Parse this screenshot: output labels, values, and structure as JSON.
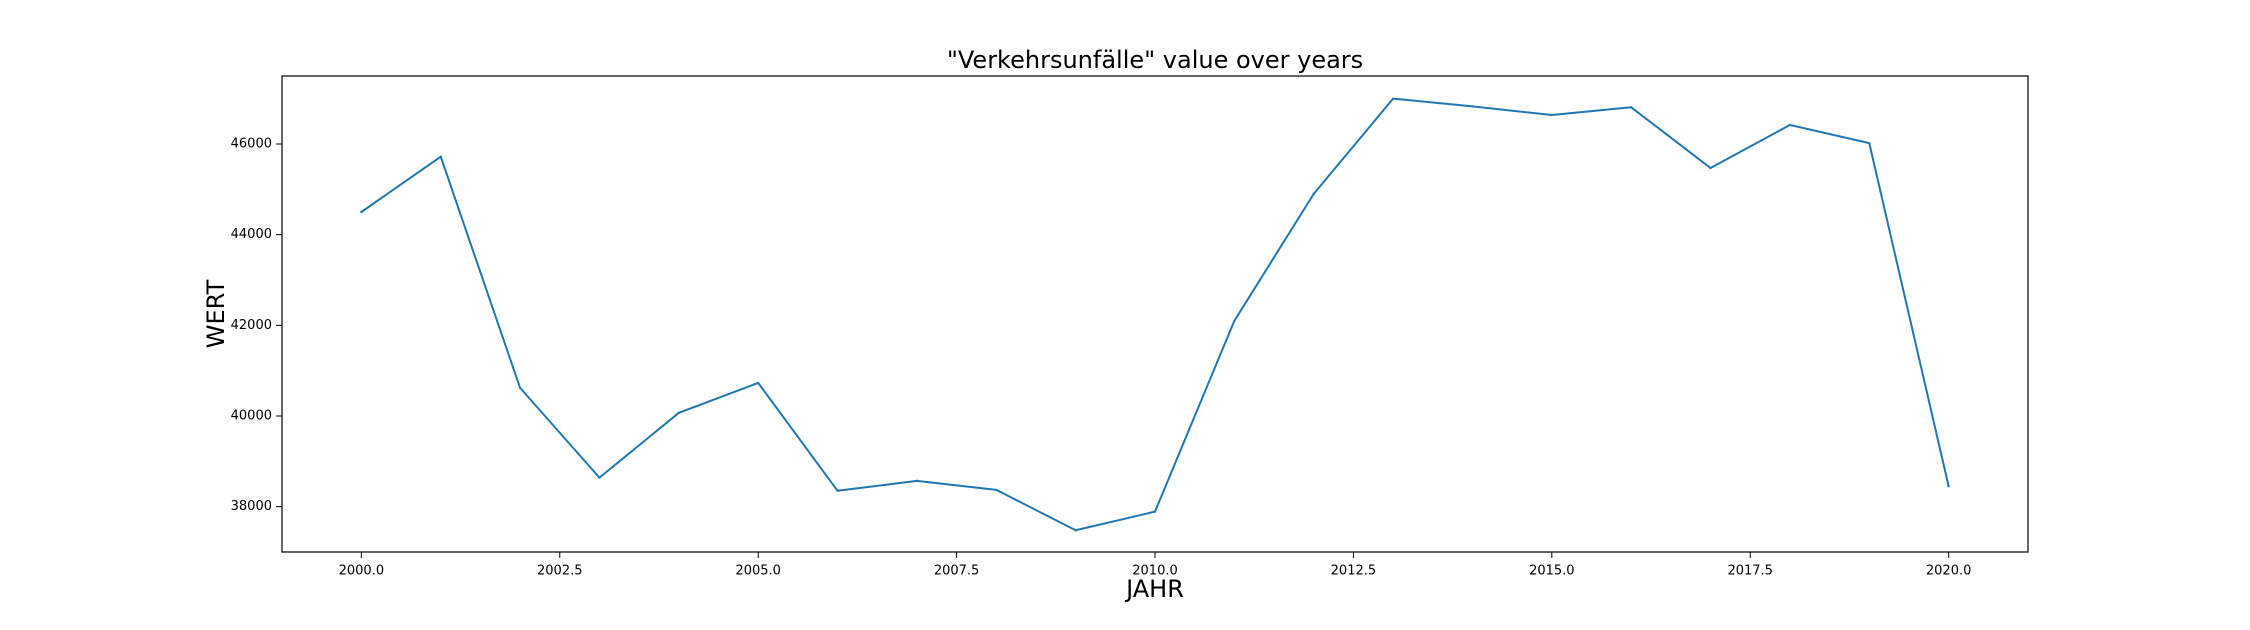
{
  "chart_data": {
    "type": "line",
    "title": "\"Verkehrsunfälle\" value over years",
    "xlabel": "JAHR",
    "ylabel": "WERT",
    "xlim": [
      1999.0,
      2021.0
    ],
    "ylim": [
      37000,
      47500
    ],
    "x_ticks": [
      2000.0,
      2002.5,
      2005.0,
      2007.5,
      2010.0,
      2012.5,
      2015.0,
      2017.5,
      2020.0
    ],
    "x_tick_labels": [
      "2000.0",
      "2002.5",
      "2005.0",
      "2007.5",
      "2010.0",
      "2012.5",
      "2015.0",
      "2017.5",
      "2020.0"
    ],
    "y_ticks": [
      38000,
      40000,
      42000,
      44000,
      46000
    ],
    "y_tick_labels": [
      "38000",
      "40000",
      "42000",
      "44000",
      "46000"
    ],
    "grid": false,
    "series": [
      {
        "name": "Verkehrsunfälle",
        "color": "#1f77b4",
        "x": [
          2000,
          2001,
          2002,
          2003,
          2004,
          2005,
          2006,
          2007,
          2008,
          2009,
          2010,
          2011,
          2012,
          2013,
          2014,
          2015,
          2016,
          2017,
          2018,
          2019,
          2020
        ],
        "values": [
          44500,
          45720,
          40620,
          38640,
          40070,
          40730,
          38350,
          38570,
          38370,
          37480,
          37890,
          42100,
          44900,
          47000,
          46830,
          46640,
          46810,
          45470,
          46420,
          46020,
          38450
        ]
      }
    ]
  }
}
